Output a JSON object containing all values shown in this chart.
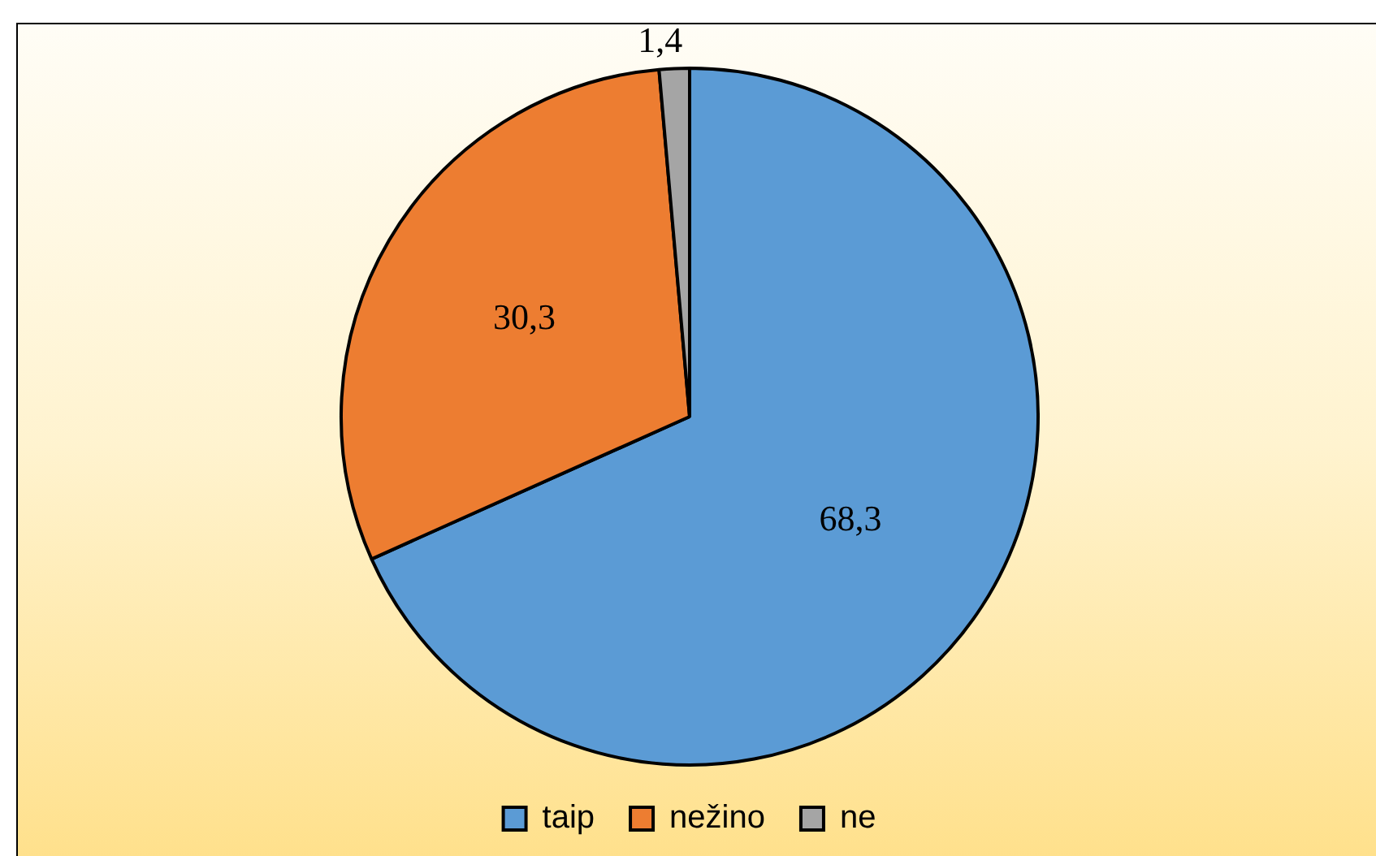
{
  "chart_data": {
    "type": "pie",
    "categories": [
      "taip",
      "nežino",
      "ne"
    ],
    "values": [
      68.3,
      30.3,
      1.4
    ],
    "colors": [
      "#5b9bd5",
      "#ed7d31",
      "#a5a5a5"
    ],
    "value_labels": [
      "68,3",
      "30,3",
      "1,4"
    ],
    "legend": "bottom"
  }
}
